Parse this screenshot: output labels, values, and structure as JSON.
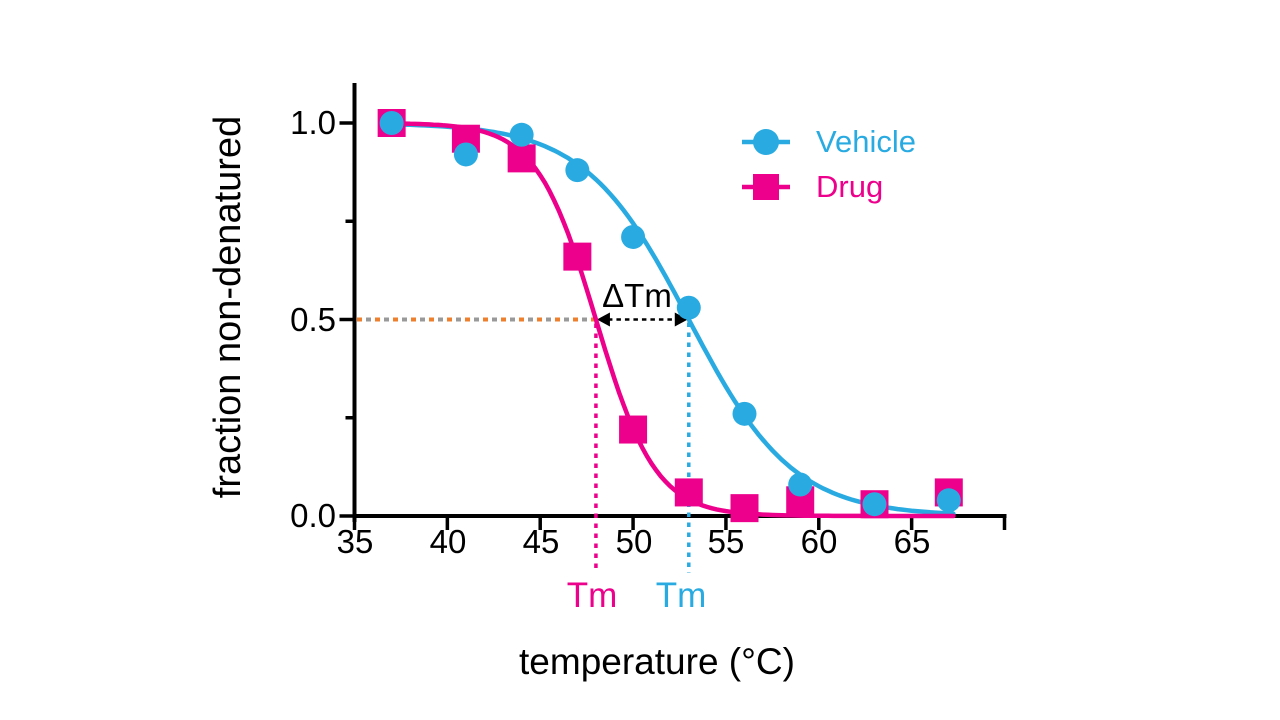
{
  "colors": {
    "vehicle": "#29ABE2",
    "drug": "#EC008C",
    "reference_orange": "#EE7F2D",
    "reference_gray": "#999999",
    "axis": "#000000"
  },
  "axes": {
    "x_label": "temperature (°C)",
    "y_label": "fraction non-denatured",
    "x_ticks": [
      "35",
      "40",
      "45",
      "50",
      "55",
      "60",
      "65"
    ],
    "y_ticks": [
      "1.0",
      "0.5",
      "0.0"
    ]
  },
  "legend": [
    {
      "label": "Vehicle",
      "marker": "circle-icon"
    },
    {
      "label": "Drug",
      "marker": "square-icon"
    }
  ],
  "annotations": {
    "delta_tm_label": "ΔTm",
    "tm_drug_label": "Tm",
    "tm_vehicle_label": "Tm"
  },
  "chart_data": {
    "type": "scatter",
    "title": "",
    "xlabel": "temperature (°C)",
    "ylabel": "fraction non-denatured",
    "xlim": [
      35,
      70
    ],
    "ylim": [
      0,
      1.05
    ],
    "xticks": [
      35,
      40,
      45,
      50,
      55,
      60,
      65
    ],
    "xtick_step": 5,
    "yticks_major": [
      0,
      0.5,
      1.0
    ],
    "yticks_minor": [
      0.25,
      0.75
    ],
    "grid": false,
    "legend_position": "upper right inside",
    "x": [
      37,
      41,
      44,
      47,
      50,
      53,
      56,
      59,
      63,
      67
    ],
    "series": [
      {
        "name": "Vehicle",
        "marker": "circle",
        "color": "#29ABE2",
        "values": [
          1.0,
          0.92,
          0.97,
          0.88,
          0.71,
          0.53,
          0.26,
          0.08,
          0.03,
          0.04
        ],
        "fit": {
          "model": "sigmoid",
          "tm": 53,
          "slope": 2.8
        }
      },
      {
        "name": "Drug",
        "marker": "square",
        "color": "#EC008C",
        "values": [
          1.0,
          0.96,
          0.91,
          0.66,
          0.22,
          0.06,
          0.02,
          0.04,
          0.03,
          0.06
        ],
        "fit": {
          "model": "sigmoid",
          "tm": 48,
          "slope": 1.6
        }
      }
    ],
    "reference_value": 0.5,
    "tm_drug": 48,
    "tm_vehicle": 53,
    "delta_tm": 5
  }
}
